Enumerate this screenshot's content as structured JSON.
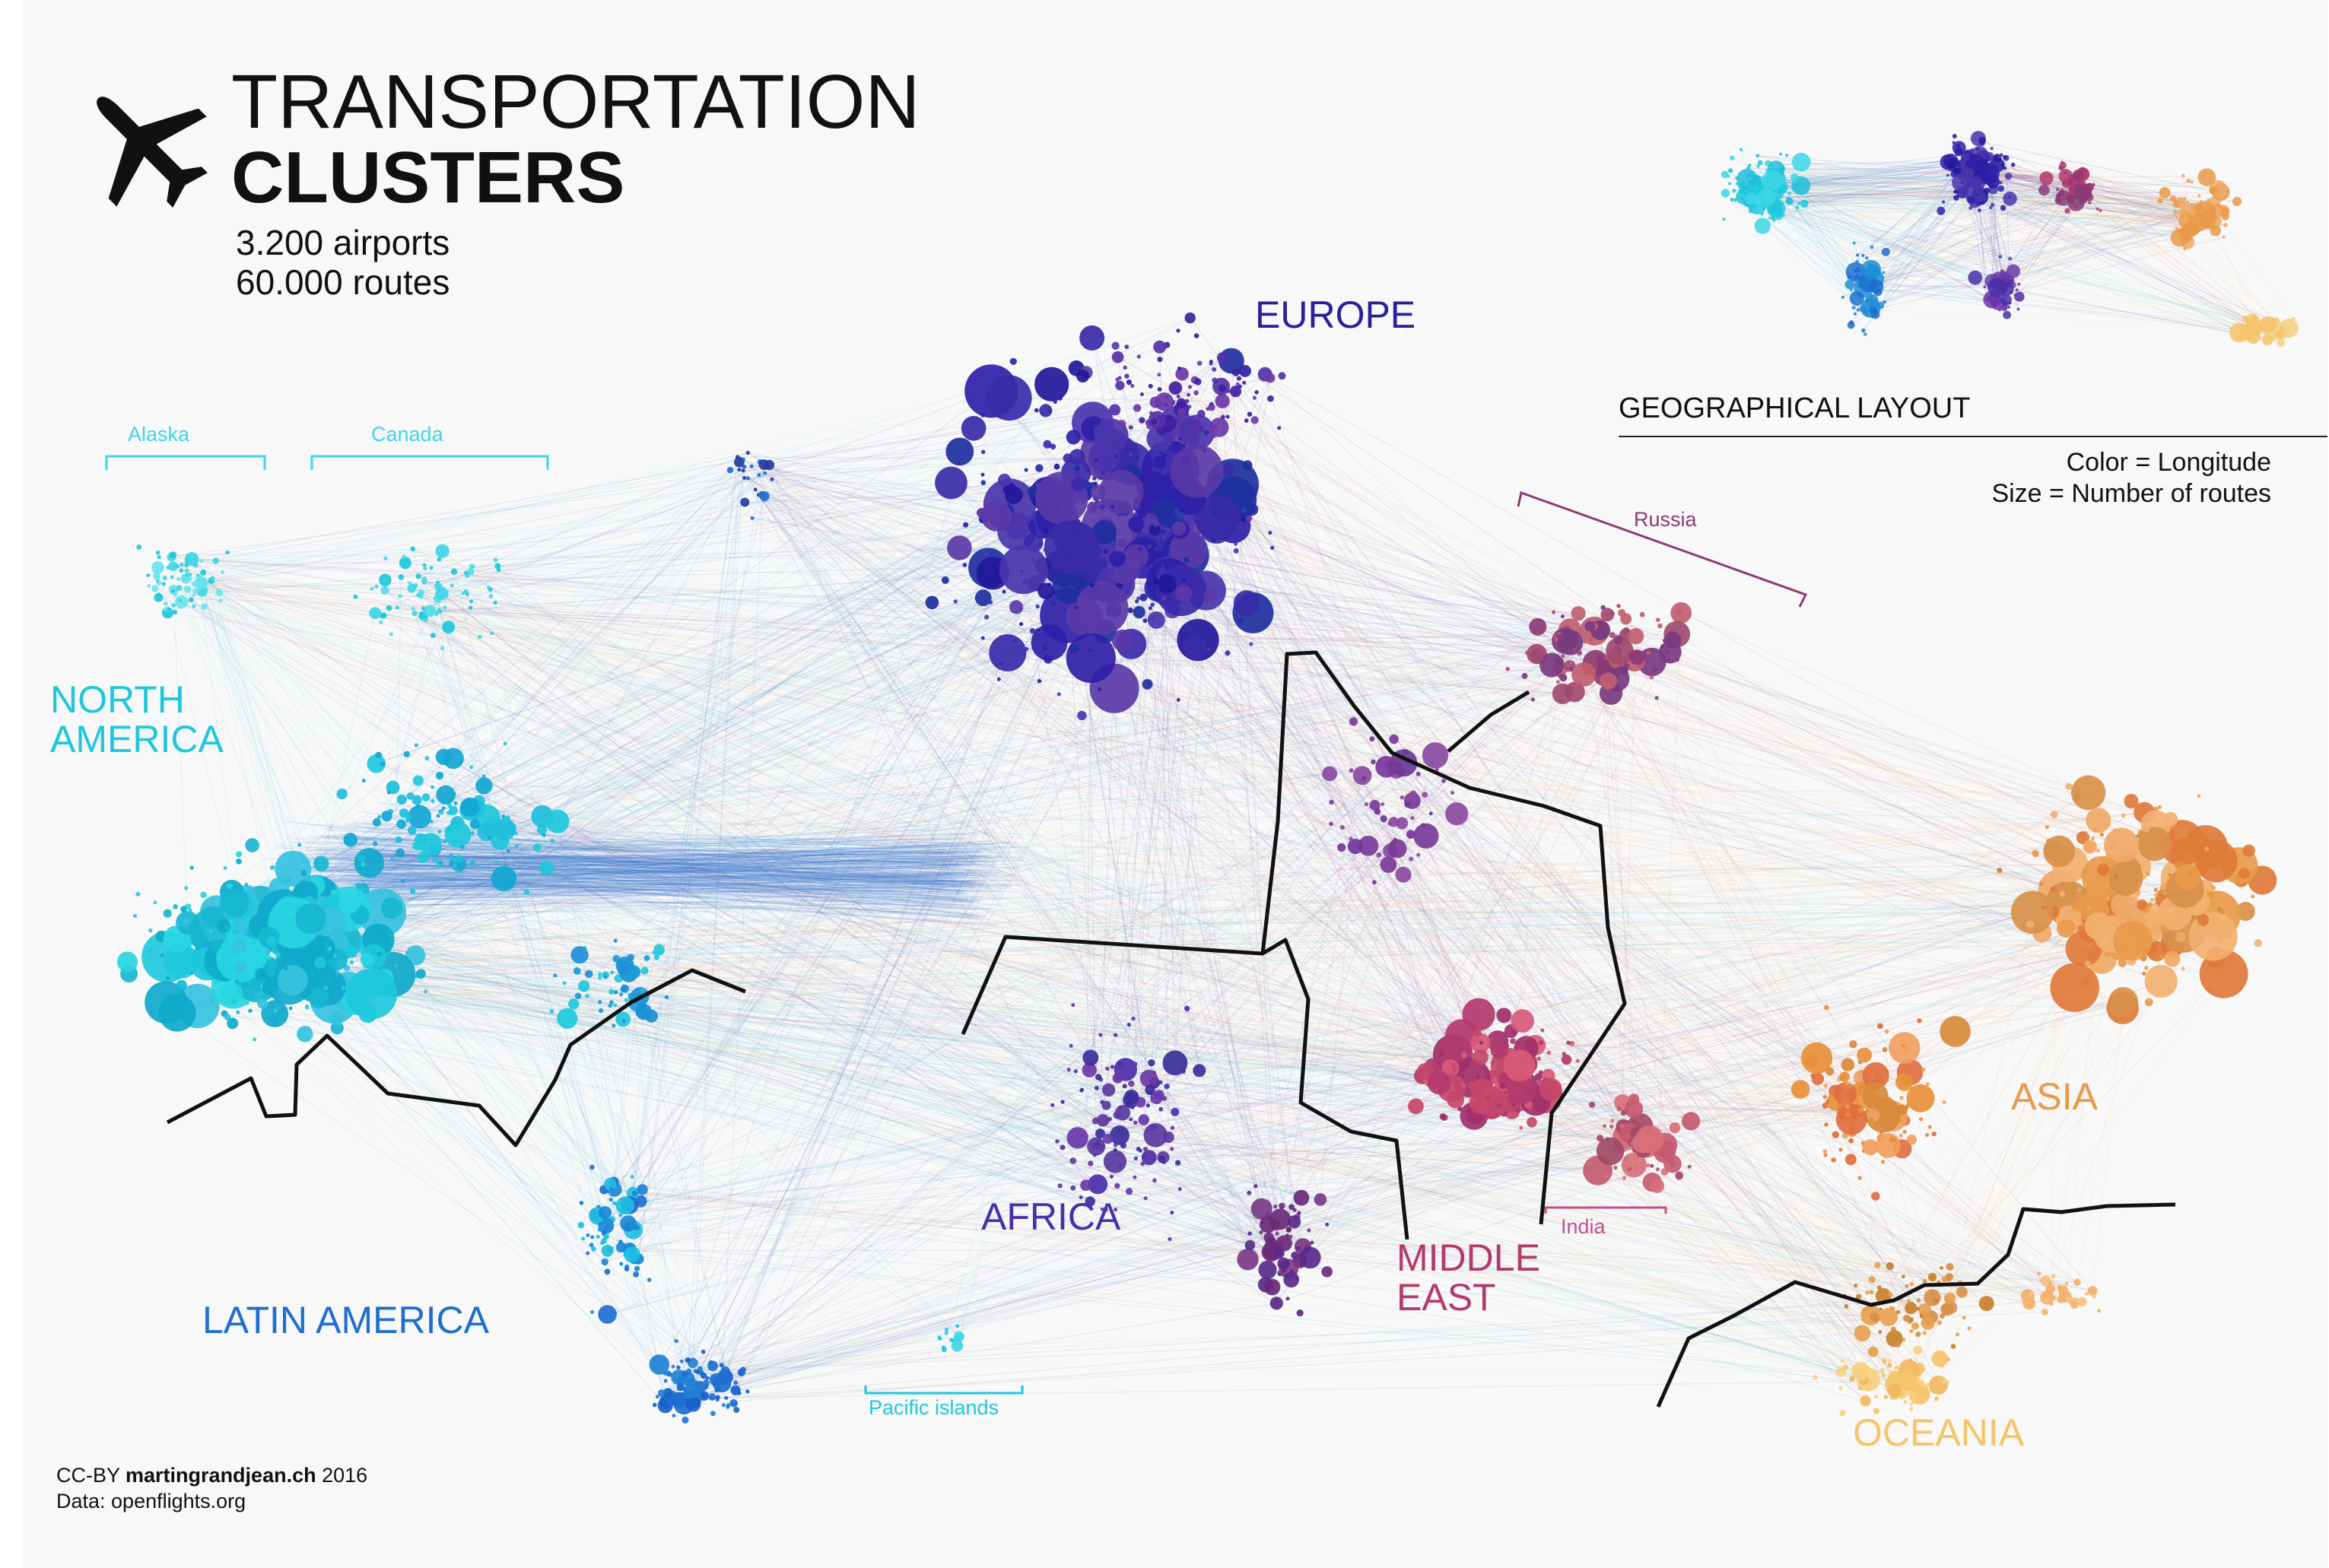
{
  "header": {
    "icon": "airplane-icon",
    "title_line1": "TRANSPORTATION",
    "title_line2": "CLUSTERS",
    "stat_airports": "3.200 airports",
    "stat_routes": "60.000 routes"
  },
  "regions": {
    "europe": "EUROPE",
    "north_america_line1": "NORTH",
    "north_america_line2": "AMERICA",
    "latin_america": "LATIN AMERICA",
    "africa": "AFRICA",
    "middle_east_line1": "MIDDLE",
    "middle_east_line2": "EAST",
    "asia": "ASIA",
    "oceania": "OCEANIA"
  },
  "subregions": {
    "alaska": "Alaska",
    "canada": "Canada",
    "russia": "Russia",
    "india": "India",
    "pacific_islands": "Pacific islands"
  },
  "inset": {
    "title": "GEOGRAPHICAL LAYOUT"
  },
  "legend": {
    "color": "Color = Longitude",
    "size": "Size = Number of routes"
  },
  "credits": {
    "license_prefix": "CC-BY ",
    "author": "martingrandjean.ch",
    "year": " 2016",
    "data_source": "Data: openflights.org"
  },
  "colors": {
    "north_america": "#1ec8dc",
    "latin_america": "#1e6fd0",
    "europe": "#23179b",
    "africa": "#4a2fa8",
    "middle_east": "#b23a6e",
    "asia": "#e89a4a",
    "oceania": "#f5c46a",
    "russia": "#8a3a76",
    "border_lines": "#111111"
  }
}
